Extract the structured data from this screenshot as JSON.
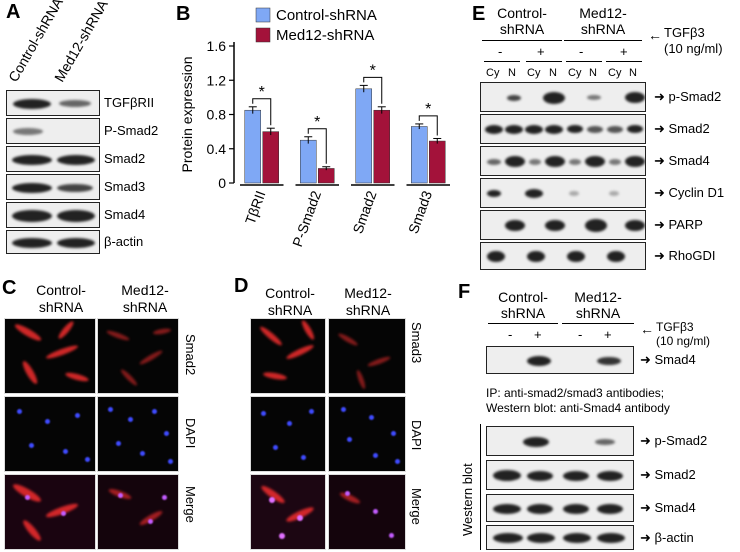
{
  "panels": {
    "A": {
      "label": "A",
      "columns": [
        "Control-shRNA",
        "Med12-shRNA"
      ],
      "rows": [
        "TGFβRII",
        "P-Smad2",
        "Smad2",
        "Smad3",
        "Smad4",
        "β-actin"
      ]
    },
    "B": {
      "label": "B",
      "ylabel": "Protein expression",
      "categories": [
        "TβRII",
        "P-Smad2",
        "Smad2",
        "Smad3"
      ],
      "legend": [
        "Control-shRNA",
        "Med12-shRNA"
      ],
      "sig_marker": "*",
      "yticks": [
        "0",
        "0.4",
        "0.8",
        "1.2",
        "1.6"
      ]
    },
    "C": {
      "label": "C",
      "col1": "Control-\nshRNA",
      "col1_a": "Control-",
      "col1_b": "shRNA",
      "col2_a": "Med12-",
      "col2_b": "shRNA",
      "rows": [
        "Smad2",
        "DAPI",
        "Merge"
      ]
    },
    "D": {
      "label": "D",
      "col1_a": "Control-",
      "col1_b": "shRNA",
      "col2_a": "Med12-",
      "col2_b": "shRNA",
      "rows": [
        "Smad3",
        "DAPI",
        "Merge"
      ]
    },
    "E": {
      "label": "E",
      "group1_a": "Control-",
      "group1_b": "shRNA",
      "group2_a": "Med12-",
      "group2_b": "shRNA",
      "treatment_a": "TGFβ3",
      "treatment_b": "(10 ng/ml)",
      "minus": "-",
      "plus": "+",
      "cy": "Cy",
      "n": "N",
      "rows": [
        "p-Smad2",
        "Smad2",
        "Smad4",
        "Cyclin D1",
        "PARP",
        "RhoGDI"
      ]
    },
    "F": {
      "label": "F",
      "group1_a": "Control-",
      "group1_b": "shRNA",
      "group2_a": "Med12-",
      "group2_b": "shRNA",
      "treatment_a": "TGFβ3",
      "treatment_b": "(10 ng/ml)",
      "minus": "-",
      "plus": "+",
      "ip_row": "Smad4",
      "ip_note_1": "IP: anti-smad2/smad3 antibodies;",
      "ip_note_2": "Western blot: anti-Smad4 antibody",
      "wb_label": "Western blot",
      "rows": [
        "p-Smad2",
        "Smad2",
        "Smad4",
        "β-actin"
      ]
    }
  },
  "chart_data": {
    "type": "bar",
    "title": "",
    "xlabel": "",
    "ylabel": "Protein expression",
    "categories": [
      "TβRII",
      "P-Smad2",
      "Smad2",
      "Smad3"
    ],
    "series": [
      {
        "name": "Control-shRNA",
        "values": [
          0.85,
          0.5,
          1.1,
          0.66
        ],
        "errors": [
          0.04,
          0.04,
          0.04,
          0.03
        ],
        "color": "#7fa8f5"
      },
      {
        "name": "Med12-shRNA",
        "values": [
          0.6,
          0.17,
          0.85,
          0.49
        ],
        "errors": [
          0.04,
          0.02,
          0.04,
          0.03
        ],
        "color": "#a3123a"
      }
    ],
    "ylim": [
      0,
      1.6
    ],
    "yticks": [
      0,
      0.4,
      0.8,
      1.2,
      1.6
    ],
    "significance": [
      "*",
      "*",
      "*",
      "*"
    ],
    "legend_position": "top",
    "grid": false
  }
}
